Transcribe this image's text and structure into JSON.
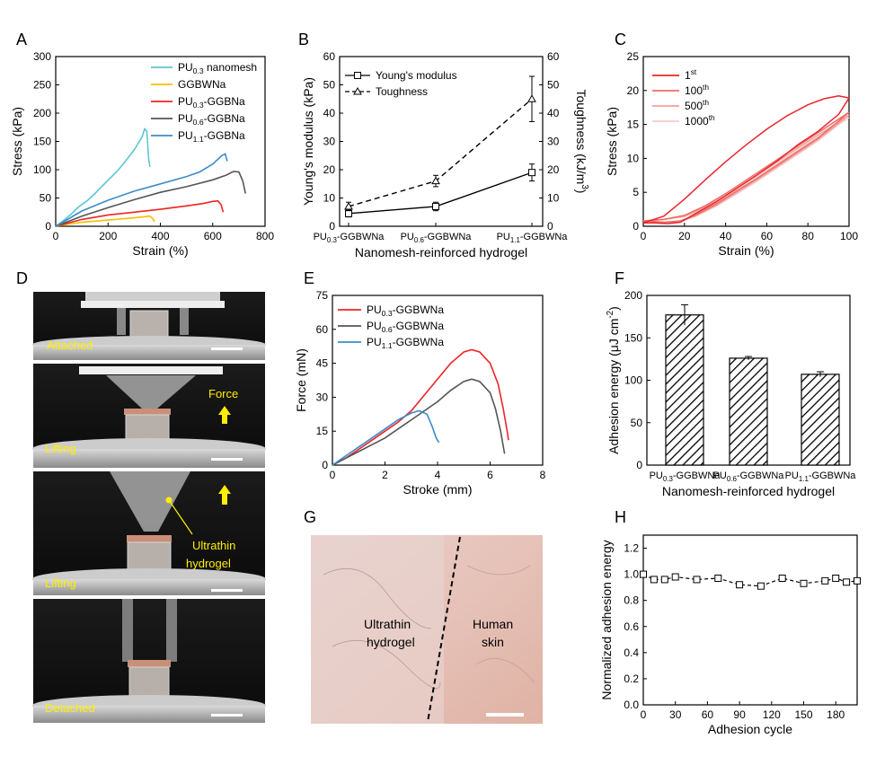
{
  "panels": {
    "A": "A",
    "B": "B",
    "C": "C",
    "D": "D",
    "E": "E",
    "F": "F",
    "G": "G",
    "H": "H"
  },
  "colors": {
    "pu03_nanomesh": "#5bc8d2",
    "ggbwna": "#f5c000",
    "pu03": "#ee2424",
    "pu06": "#555555",
    "pu11": "#3b8cc8",
    "cyc1": "#e8262a",
    "cyc100": "#ef6b66",
    "cyc500": "#f2a09c",
    "cyc1000": "#f7cccb",
    "photo_label": "#ffee00"
  },
  "photos": {
    "d1_label": "Attached",
    "d2_label": "Lifting",
    "d2_force": "Force",
    "d3_label": "Lifting",
    "d3_callout_1": "Ultrathin",
    "d3_callout_2": "hydrogel",
    "d4_label": "Detached",
    "g_left_1": "Ultrathin",
    "g_left_2": "hydrogel",
    "g_right_1": "Human",
    "g_right_2": "skin"
  },
  "chart_data": [
    {
      "panel": "A",
      "type": "line",
      "xlabel": "Strain (%)",
      "ylabel": "Stress (kPa)",
      "xlim": [
        0,
        800
      ],
      "ylim": [
        0,
        300
      ],
      "xticks": [
        0,
        200,
        400,
        600,
        800
      ],
      "yticks": [
        0,
        50,
        100,
        150,
        200,
        250,
        300
      ],
      "legend": [
        "PU0.3 nanomesh",
        "GGBWNa",
        "PU0.3-GGBNa",
        "PU0.6-GGBNa",
        "PU1.1-GGBNa"
      ],
      "series": [
        {
          "name": "PU0.3 nanomesh",
          "x": [
            0,
            30,
            60,
            90,
            120,
            150,
            180,
            210,
            240,
            270,
            300,
            330,
            340,
            348,
            355,
            360
          ],
          "y": [
            0,
            10,
            22,
            35,
            45,
            58,
            72,
            86,
            100,
            117,
            135,
            158,
            172,
            168,
            120,
            105
          ]
        },
        {
          "name": "GGBWNa",
          "x": [
            0,
            50,
            100,
            150,
            200,
            250,
            300,
            340,
            360,
            370,
            378
          ],
          "y": [
            0,
            4,
            7,
            9,
            11,
            13,
            15,
            17,
            18,
            14,
            8
          ]
        },
        {
          "name": "PU0.3-GGBNa",
          "x": [
            0,
            100,
            200,
            300,
            400,
            500,
            560,
            600,
            620,
            632,
            640
          ],
          "y": [
            0,
            12,
            20,
            25,
            30,
            36,
            40,
            44,
            45,
            38,
            25
          ]
        },
        {
          "name": "PU0.6-GGBNa",
          "x": [
            0,
            100,
            200,
            300,
            400,
            500,
            600,
            650,
            680,
            700,
            715,
            725
          ],
          "y": [
            0,
            18,
            33,
            47,
            60,
            70,
            82,
            90,
            97,
            96,
            80,
            58
          ]
        },
        {
          "name": "PU1.1-GGBNa",
          "x": [
            0,
            100,
            200,
            300,
            400,
            500,
            550,
            600,
            635,
            648,
            655
          ],
          "y": [
            0,
            27,
            46,
            62,
            75,
            88,
            96,
            110,
            125,
            128,
            115
          ]
        }
      ]
    },
    {
      "panel": "B",
      "type": "line",
      "xlabel": "Nanomesh-reinforced hydrogel",
      "ylabel": "Young's modulus (kPa)",
      "y2label": "Toughness (kJ/m3)",
      "y2label_main": "Toughness (kJ/m",
      "y2label_sup": "3",
      "y2label_end": ")",
      "categories": [
        "PU0.3-GGBWNa",
        "PU0.6-GGBWNa",
        "PU1.1-GGBWNa"
      ],
      "ylim": [
        0,
        60
      ],
      "y2lim": [
        0,
        60
      ],
      "yticks": [
        0,
        10,
        20,
        30,
        40,
        50,
        60
      ],
      "legend": [
        "Young's modulus",
        "Toughness"
      ],
      "series": [
        {
          "name": "Young's modulus",
          "values": [
            4.5,
            7,
            19
          ],
          "errors": [
            1.2,
            1.5,
            3
          ]
        },
        {
          "name": "Toughness",
          "values": [
            7,
            16,
            45
          ],
          "errors": [
            1.5,
            2,
            8
          ]
        }
      ]
    },
    {
      "panel": "C",
      "type": "line",
      "xlabel": "Strain (%)",
      "ylabel": "Stress (kPa)",
      "xlim": [
        0,
        100
      ],
      "ylim": [
        0,
        25
      ],
      "xticks": [
        0,
        20,
        40,
        60,
        80,
        100
      ],
      "yticks": [
        0,
        5,
        10,
        15,
        20,
        25
      ],
      "legend": [
        "1st",
        "100th",
        "500th",
        "1000th"
      ],
      "series": [
        {
          "name": "1st",
          "x": [
            0,
            10,
            20,
            30,
            40,
            50,
            60,
            70,
            80,
            88,
            95,
            100,
            95,
            85,
            75,
            65,
            55,
            45,
            35,
            25,
            18,
            12,
            5,
            0
          ],
          "y": [
            0.5,
            1.5,
            4,
            6.8,
            9.5,
            12,
            14.3,
            16.3,
            17.9,
            18.8,
            19.2,
            18.9,
            16.5,
            14,
            12,
            9.6,
            7.5,
            5.5,
            3.5,
            1.8,
            0.6,
            0.4,
            0.5,
            0.5
          ]
        },
        {
          "name": "100th",
          "x": [
            0,
            10,
            20,
            30,
            40,
            50,
            60,
            70,
            80,
            90,
            95,
            100,
            95,
            85,
            75,
            65,
            55,
            45,
            35,
            25,
            18,
            10,
            0
          ],
          "y": [
            0.8,
            1,
            1.6,
            3,
            4.8,
            6.8,
            8.8,
            10.8,
            12.8,
            14.8,
            15.8,
            16.8,
            15.5,
            13,
            11,
            9,
            7,
            5.1,
            3.2,
            1.6,
            0.8,
            0.6,
            0.8
          ]
        },
        {
          "name": "500th",
          "x": [
            0,
            10,
            20,
            30,
            40,
            50,
            60,
            70,
            80,
            90,
            95,
            100,
            95,
            85,
            75,
            65,
            55,
            45,
            35,
            25,
            18,
            10,
            0
          ],
          "y": [
            0.8,
            1,
            1.5,
            2.8,
            4.5,
            6.5,
            8.5,
            10.5,
            12.5,
            14.4,
            15.4,
            16.4,
            15.2,
            12.8,
            10.8,
            8.8,
            6.8,
            4.9,
            3,
            1.5,
            0.7,
            0.6,
            0.8
          ]
        },
        {
          "name": "1000th",
          "x": [
            0,
            10,
            20,
            30,
            40,
            50,
            60,
            70,
            80,
            90,
            95,
            100,
            95,
            85,
            75,
            65,
            55,
            45,
            35,
            25,
            18,
            10,
            0
          ],
          "y": [
            0.8,
            1,
            1.4,
            2.6,
            4.3,
            6.2,
            8.2,
            10.2,
            12.2,
            14.1,
            15.1,
            16,
            15,
            12.6,
            10.6,
            8.6,
            6.6,
            4.7,
            2.9,
            1.4,
            0.7,
            0.6,
            0.8
          ]
        }
      ]
    },
    {
      "panel": "E",
      "type": "line",
      "xlabel": "Stroke (mm)",
      "ylabel": "Force (mN)",
      "xlim": [
        0,
        8
      ],
      "ylim": [
        0,
        75
      ],
      "xticks": [
        0,
        2,
        4,
        6,
        8
      ],
      "yticks": [
        0,
        15,
        30,
        45,
        60,
        75
      ],
      "legend": [
        "PU0.3-GGBWNa",
        "PU0.6-GGBWNa",
        "PU1.1-GGBWNa"
      ],
      "series": [
        {
          "name": "PU0.3-GGBWNa",
          "x": [
            0,
            0.5,
            1,
            1.5,
            2,
            2.5,
            3,
            3.5,
            4,
            4.5,
            5,
            5.3,
            5.6,
            6,
            6.3,
            6.5,
            6.65,
            6.7
          ],
          "y": [
            0,
            3,
            7,
            11,
            15,
            19,
            24,
            31,
            38,
            45,
            50,
            51,
            50,
            45,
            36,
            25,
            15,
            11
          ]
        },
        {
          "name": "PU0.6-GGBWNa",
          "x": [
            0,
            0.5,
            1,
            1.5,
            2,
            2.5,
            3,
            3.5,
            4,
            4.5,
            5,
            5.3,
            5.6,
            6,
            6.2,
            6.4,
            6.55
          ],
          "y": [
            0,
            3,
            6,
            9,
            12,
            16,
            20,
            24,
            28,
            33,
            37,
            38,
            37,
            32,
            25,
            15,
            5
          ]
        },
        {
          "name": "PU1.1-GGBWNa",
          "x": [
            0,
            0.5,
            1,
            1.5,
            2,
            2.5,
            3,
            3.3,
            3.6,
            3.8,
            3.95,
            4.05
          ],
          "y": [
            0,
            4,
            8,
            12,
            16,
            20,
            23,
            24,
            22.5,
            17,
            12,
            10
          ]
        }
      ]
    },
    {
      "panel": "F",
      "type": "bar",
      "xlabel": "Nanomesh-reinforced hydrogel",
      "ylabel": "Adhesion energy (μJ cm-2)",
      "ylabel_main": "Adhesion energy (μJ cm",
      "ylabel_sup": "-2",
      "ylabel_end": ")",
      "categories": [
        "PU0.3-GGBWNa",
        "PU0.6-GGBWNa",
        "PU1.1-GGBWNa"
      ],
      "values": [
        177,
        126,
        107
      ],
      "errors": [
        12,
        2,
        3
      ],
      "ylim": [
        0,
        200
      ],
      "yticks": [
        0,
        50,
        100,
        150,
        200
      ]
    },
    {
      "panel": "H",
      "type": "line",
      "xlabel": "Adhesion cycle",
      "ylabel": "Normalized adhesion energy",
      "xlim": [
        0,
        200
      ],
      "ylim": [
        0,
        1.3
      ],
      "xticks": [
        0,
        30,
        60,
        90,
        120,
        150,
        180
      ],
      "yticks": [
        0.0,
        0.2,
        0.4,
        0.6,
        0.8,
        1.0,
        1.2
      ],
      "series": [
        {
          "name": "Normalized adhesion energy",
          "x": [
            0,
            10,
            20,
            30,
            50,
            70,
            90,
            110,
            130,
            150,
            170,
            180,
            190,
            200
          ],
          "y": [
            1.0,
            0.96,
            0.96,
            0.98,
            0.96,
            0.97,
            0.92,
            0.91,
            0.97,
            0.93,
            0.95,
            0.97,
            0.94,
            0.95
          ]
        }
      ]
    }
  ]
}
